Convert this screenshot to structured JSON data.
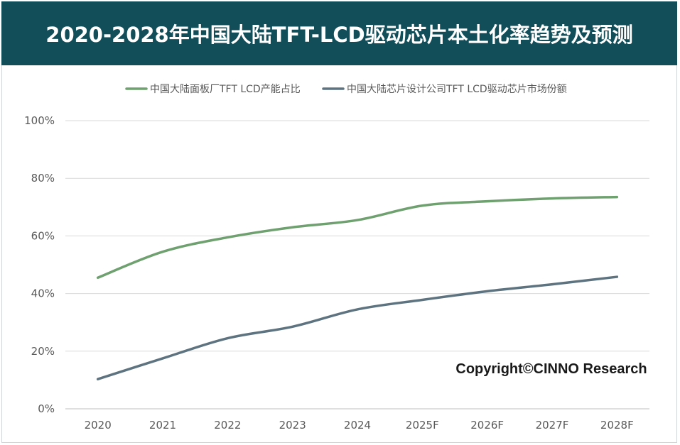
{
  "chart_data": {
    "type": "line",
    "title": "2020-2028年中国大陆TFT-LCD驱动芯片本土化率趋势及预测",
    "categories": [
      "2020",
      "2021",
      "2022",
      "2023",
      "2024",
      "2025F",
      "2026F",
      "2027F",
      "2028F"
    ],
    "series": [
      {
        "name": "中国大陆面板厂TFT LCD产能占比",
        "values": [
          45.5,
          54.5,
          59.5,
          63,
          65.5,
          70.5,
          72,
          73,
          73.5
        ],
        "color": "#6fa06f"
      },
      {
        "name": "中国大陆芯片设计公司TFT LCD驱动芯片市场份额",
        "values": [
          10.3,
          17.5,
          24.5,
          28.5,
          34.5,
          37.8,
          40.8,
          43.2,
          45.8
        ],
        "color": "#5e7380"
      }
    ],
    "yticks": [
      "0%",
      "20%",
      "40%",
      "60%",
      "80%",
      "100%"
    ],
    "ylim": [
      0,
      100
    ],
    "grid": true,
    "legend": "top",
    "xlabel": "",
    "ylabel": ""
  },
  "watermark": "Copyright©CINNO Research"
}
